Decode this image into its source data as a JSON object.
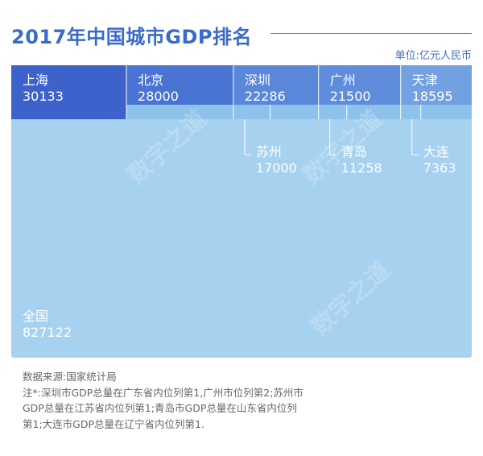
{
  "title": "2017年中国城市GDP排名",
  "unit": "单位:亿元人民币",
  "watermark": "数字之道",
  "colors": {
    "title": "#3a6bc8",
    "total_background": "#a6d1ef",
    "province_strip": "#8fc2ea",
    "shanghai": "#3d62cc",
    "beijing": "#4a74d3",
    "shenzhen": "#5b87da",
    "guangzhou": "#5f8ddc",
    "tianjin": "#72a0e1",
    "label_text": "#ffffff"
  },
  "chart_data": {
    "type": "treemap",
    "total": {
      "name": "全国",
      "value": 827122
    },
    "series": [
      {
        "name": "上海",
        "value": 30133
      },
      {
        "name": "北京",
        "value": 28000
      },
      {
        "name": "深圳",
        "value": 22286,
        "province_peer": {
          "name": "苏州",
          "value": 17000
        }
      },
      {
        "name": "广州",
        "value": 21500,
        "province_peer": {
          "name": "青岛",
          "value": 11258
        }
      },
      {
        "name": "天津",
        "value": 18595,
        "province_peer": {
          "name": "大连",
          "value": 7363
        }
      }
    ]
  },
  "notes": {
    "source": "数据来源:国家统计局",
    "lines": [
      "注*:深圳市GDP总量在广东省内位列第1,广州市位列第2;苏州市",
      "GDP总量在江苏省内位列第1;青岛市GDP总量在山东省内位列",
      "第1;大连市GDP总量在辽宁省内位列第1."
    ]
  }
}
